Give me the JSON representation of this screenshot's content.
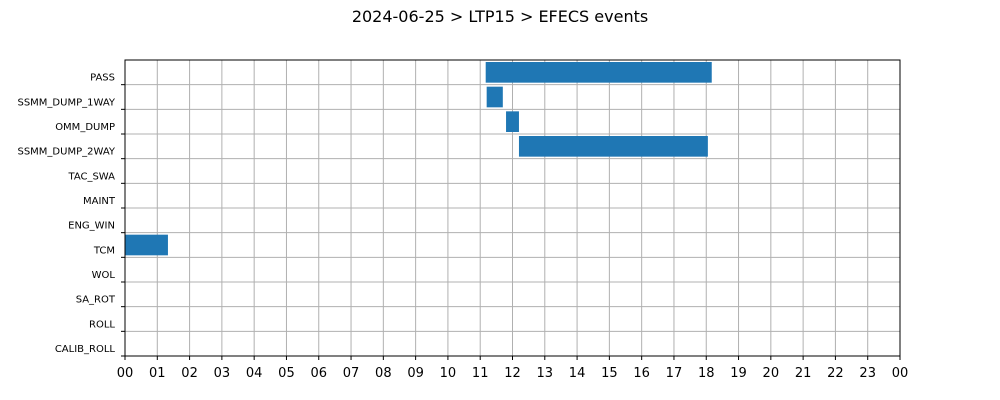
{
  "chart_data": {
    "type": "bar",
    "orientation": "horizontal-timeline",
    "title": "2024-06-25 > LTP15 > EFECS events",
    "xlabel": "",
    "ylabel": "",
    "xlim": [
      0,
      24
    ],
    "x_tick_labels": [
      "00",
      "01",
      "02",
      "03",
      "04",
      "05",
      "06",
      "07",
      "08",
      "09",
      "10",
      "11",
      "12",
      "13",
      "14",
      "15",
      "16",
      "17",
      "18",
      "19",
      "20",
      "21",
      "22",
      "23",
      "00"
    ],
    "grid": true,
    "bar_color": "#1f77b4",
    "categories": [
      "PASS",
      "SSMM_DUMP_1WAY",
      "OMM_DUMP",
      "SSMM_DUMP_2WAY",
      "TAC_SWA",
      "MAINT",
      "ENG_WIN",
      "TCM",
      "WOL",
      "SA_ROT",
      "ROLL",
      "CALIB_ROLL"
    ],
    "events": [
      {
        "category": "PASS",
        "start": 11.17,
        "end": 18.17
      },
      {
        "category": "SSMM_DUMP_1WAY",
        "start": 11.2,
        "end": 11.7
      },
      {
        "category": "OMM_DUMP",
        "start": 11.8,
        "end": 12.2
      },
      {
        "category": "SSMM_DUMP_2WAY",
        "start": 12.2,
        "end": 18.05
      },
      {
        "category": "TCM",
        "start": 0.0,
        "end": 1.33
      }
    ]
  }
}
